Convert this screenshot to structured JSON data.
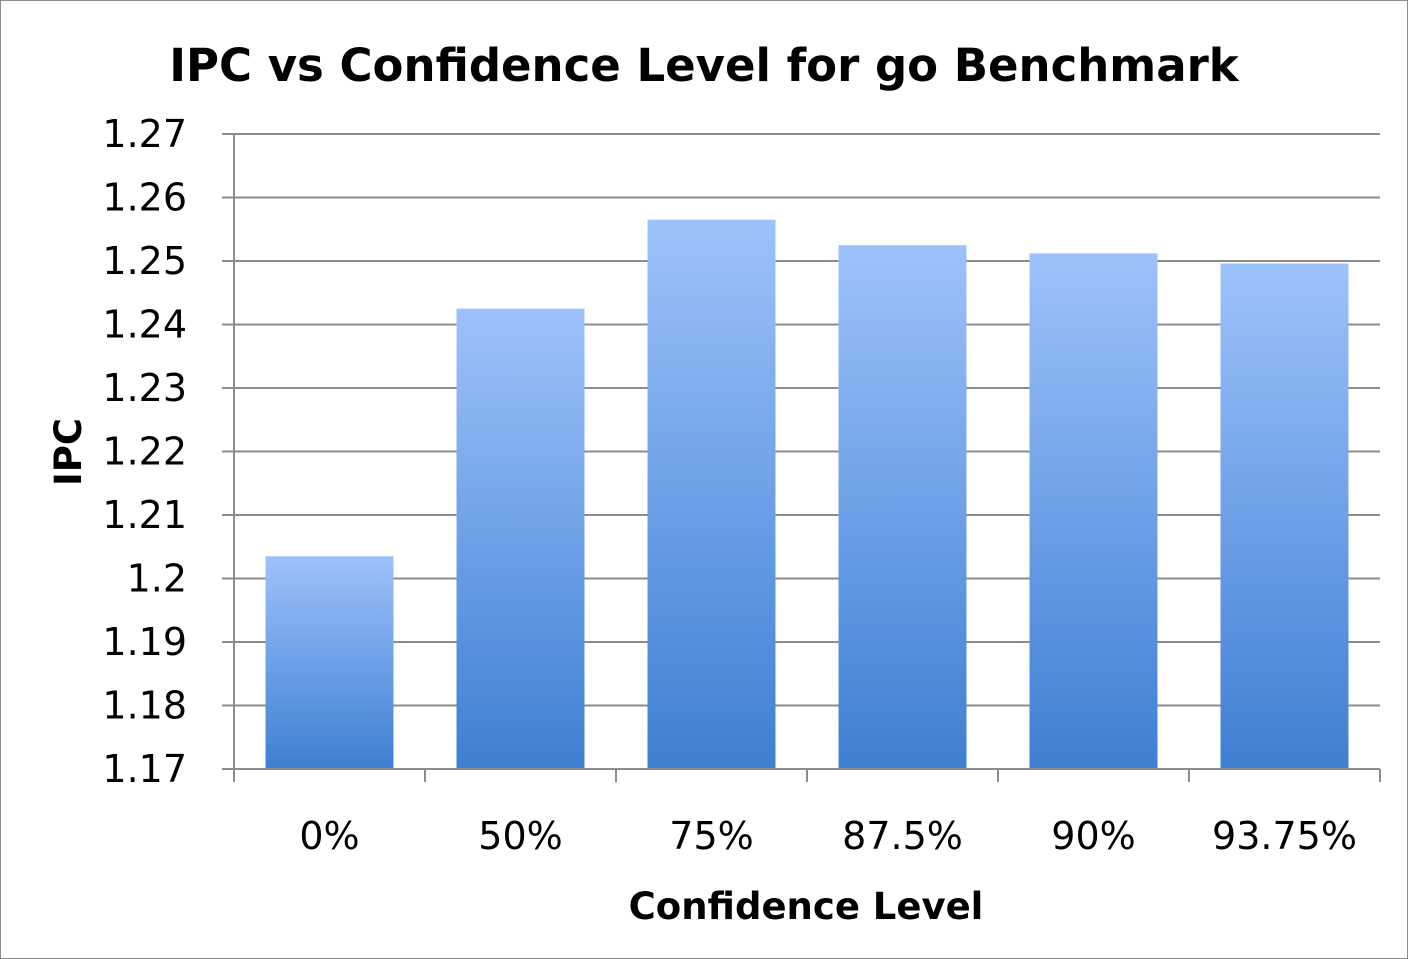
{
  "chart_data": {
    "type": "bar",
    "title": "IPC vs Confidence Level for go Benchmark",
    "xlabel": "Confidence Level",
    "ylabel": "IPC",
    "categories": [
      "0%",
      "50%",
      "75%",
      "87.5%",
      "90%",
      "93.75%"
    ],
    "values": [
      1.2035,
      1.2425,
      1.2565,
      1.2525,
      1.2512,
      1.2496
    ],
    "ylim": [
      1.17,
      1.27
    ],
    "yticks": [
      "1.17",
      "1.18",
      "1.19",
      "1.2",
      "1.21",
      "1.22",
      "1.23",
      "1.24",
      "1.25",
      "1.26",
      "1.27"
    ],
    "ytick_values": [
      1.17,
      1.18,
      1.19,
      1.2,
      1.21,
      1.22,
      1.23,
      1.24,
      1.25,
      1.26,
      1.27
    ],
    "grid": true,
    "legend": "none",
    "colors": {
      "bar_top": "#9dc2fb",
      "bar_bottom": "#3e7fd2",
      "grid": "#8c8c8c",
      "axis": "#8c8c8c"
    }
  }
}
